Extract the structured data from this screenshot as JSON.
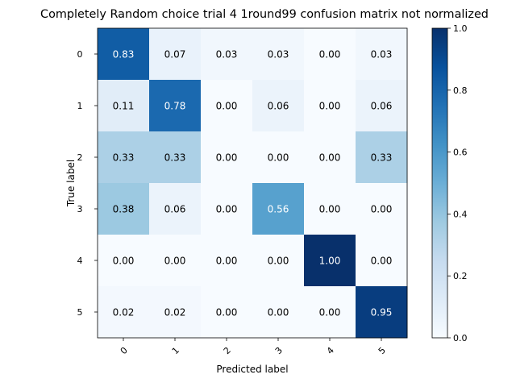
{
  "chart_data": {
    "type": "heatmap",
    "title": "Completely Random choice trial 4 1round99 confusion matrix not normalized",
    "xlabel": "Predicted label",
    "ylabel": "True label",
    "x_categories": [
      "0",
      "1",
      "2",
      "3",
      "4",
      "5"
    ],
    "y_categories": [
      "0",
      "1",
      "2",
      "3",
      "4",
      "5"
    ],
    "values": [
      [
        0.83,
        0.07,
        0.03,
        0.03,
        0.0,
        0.03
      ],
      [
        0.11,
        0.78,
        0.0,
        0.06,
        0.0,
        0.06
      ],
      [
        0.33,
        0.33,
        0.0,
        0.0,
        0.0,
        0.33
      ],
      [
        0.38,
        0.06,
        0.0,
        0.56,
        0.0,
        0.0
      ],
      [
        0.0,
        0.0,
        0.0,
        0.0,
        1.0,
        0.0
      ],
      [
        0.02,
        0.02,
        0.0,
        0.0,
        0.0,
        0.95
      ]
    ],
    "value_format": "0.00",
    "colormap": "Blues",
    "colorbar": {
      "range": [
        0.0,
        1.0
      ],
      "ticks": [
        "0.0",
        "0.2",
        "0.4",
        "0.6",
        "0.8",
        "1.0"
      ]
    },
    "grid": false,
    "x_tick_rotation_deg": 45
  }
}
